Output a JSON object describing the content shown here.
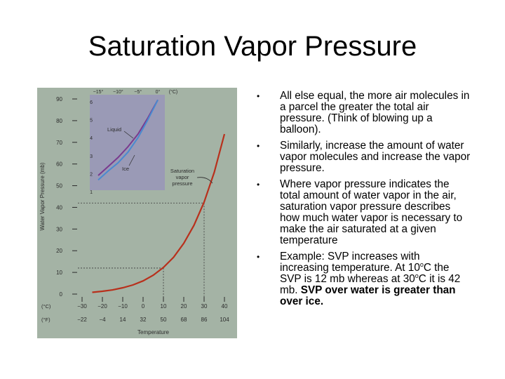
{
  "slide": {
    "title": "Saturation Vapor Pressure"
  },
  "bullets": [
    {
      "text": "All else equal, the more air molecules in a parcel the greater the total air pressure. (Think of blowing up a balloon)."
    },
    {
      "text": "Similarly, increase the amount of water vapor molecules and increase the vapor pressure."
    },
    {
      "text": "Where vapor pressure indicates the total amount of water vapor in the air, saturation vapor pressure describes how much water vapor is necessary to make the air saturated at a given temperature"
    },
    {
      "pre1": "Example:  SVP increases with increasing temperature.  At 10",
      "sup1": "o",
      "mid1": "C the SVP is 12 mb whereas at 30",
      "sup2": "o",
      "mid2": "C it is 42 mb.  ",
      "strong": "SVP over water is greater than over ice."
    }
  ],
  "colors": {
    "panel": "#a4b3a5",
    "inset": "#9a9ab6",
    "liquid_curve": "#7a3a8e",
    "ice_curve": "#4a8ad0",
    "main_curve": "#b8301c"
  },
  "chart_data": [
    {
      "type": "line",
      "xlabel": "Temperature",
      "ylabel": "Water Vapor Pressure (mb)",
      "x_unit_c": "(°C)",
      "x_unit_f": "(°F)",
      "xlim": [
        -30,
        40
      ],
      "ylim": [
        0,
        90
      ],
      "x_ticks_c": [
        "−30",
        "−20",
        "−10",
        "0",
        "10",
        "20",
        "30",
        "40"
      ],
      "x_ticks_f": [
        "−22",
        "−4",
        "14",
        "32",
        "50",
        "68",
        "86",
        "104"
      ],
      "y_ticks": [
        "0",
        "10",
        "20",
        "30",
        "40",
        "50",
        "60",
        "70",
        "80",
        "90"
      ],
      "grid": false,
      "series": [
        {
          "x": [
            -25,
            -20,
            -15,
            -10,
            -5,
            0,
            5,
            10,
            15,
            20,
            25,
            30,
            35,
            40
          ],
          "y": [
            0.8,
            1.3,
            1.9,
            2.9,
            4.2,
            6.1,
            8.7,
            12.3,
            17.0,
            23.4,
            31.7,
            42.4,
            56.2,
            73.8
          ]
        }
      ],
      "annotations": [
        {
          "text": "Saturation vapor pressure",
          "lines": [
            "Saturation",
            "vapor",
            "pressure"
          ]
        }
      ],
      "reference_points": [
        {
          "x": 10,
          "y": 12
        },
        {
          "x": 30,
          "y": 42
        }
      ]
    },
    {
      "type": "line",
      "xlim": [
        -15,
        0
      ],
      "ylim": [
        1,
        6
      ],
      "x_ticks_c": [
        "−15°",
        "−10°",
        "−5°",
        "0°"
      ],
      "x_unit": "(°C)",
      "y_ticks": [
        "1",
        "2",
        "3",
        "4",
        "5",
        "6"
      ],
      "series": [
        {
          "name": "Liquid",
          "x": [
            -15,
            -12.5,
            -10,
            -7.5,
            -5,
            -2.5,
            0
          ],
          "y": [
            1.9,
            2.4,
            2.9,
            3.5,
            4.2,
            5.1,
            6.1
          ]
        },
        {
          "name": "Ice",
          "x": [
            -15,
            -12.5,
            -10,
            -7.5,
            -5,
            -2.5,
            0
          ],
          "y": [
            1.65,
            2.15,
            2.6,
            3.2,
            4.0,
            5.0,
            6.1
          ]
        }
      ]
    }
  ]
}
